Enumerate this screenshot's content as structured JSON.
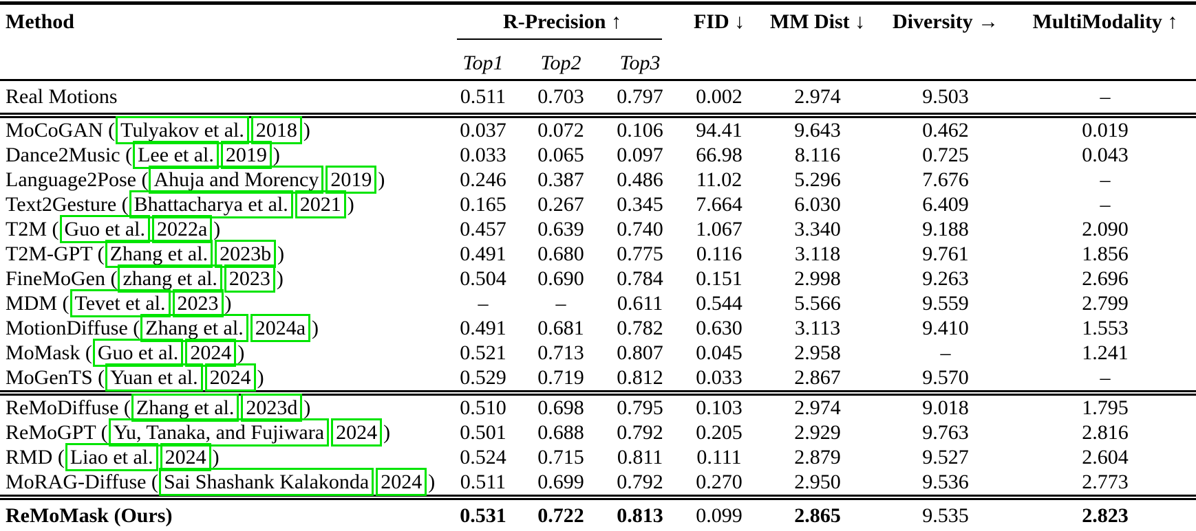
{
  "annotation": {
    "box_color": "#00e400"
  },
  "table": {
    "header": {
      "method": "Method",
      "r_precision": "R-Precision ↑",
      "subcols": [
        "Top1",
        "Top2",
        "Top3"
      ],
      "metrics": [
        "FID ↓",
        "MM Dist ↓",
        "Diversity →",
        "MultiModality ↑"
      ]
    },
    "missing_symbol": "–",
    "sections": [
      {
        "rows": [
          {
            "name": "Real Motions",
            "cite": null,
            "values": [
              "0.511",
              "0.703",
              "0.797",
              "0.002",
              "2.974",
              "9.503",
              "–"
            ]
          }
        ]
      },
      {
        "rows": [
          {
            "name": "MoCoGAN",
            "cite": {
              "author": "Tulyakov et al.",
              "year": "2018"
            },
            "values": [
              "0.037",
              "0.072",
              "0.106",
              "94.41",
              "9.643",
              "0.462",
              "0.019"
            ]
          },
          {
            "name": "Dance2Music",
            "cite": {
              "author": "Lee et al.",
              "year": "2019"
            },
            "values": [
              "0.033",
              "0.065",
              "0.097",
              "66.98",
              "8.116",
              "0.725",
              "0.043"
            ]
          },
          {
            "name": "Language2Pose",
            "cite": {
              "author": "Ahuja and Morency",
              "year": "2019"
            },
            "values": [
              "0.246",
              "0.387",
              "0.486",
              "11.02",
              "5.296",
              "7.676",
              "–"
            ]
          },
          {
            "name": "Text2Gesture",
            "cite": {
              "author": "Bhattacharya et al.",
              "year": "2021"
            },
            "values": [
              "0.165",
              "0.267",
              "0.345",
              "7.664",
              "6.030",
              "6.409",
              "–"
            ]
          },
          {
            "name": "T2M",
            "cite": {
              "author": "Guo et al.",
              "year": "2022a"
            },
            "values": [
              "0.457",
              "0.639",
              "0.740",
              "1.067",
              "3.340",
              "9.188",
              "2.090"
            ]
          },
          {
            "name": "T2M-GPT",
            "cite": {
              "author": "Zhang et al.",
              "year": "2023b"
            },
            "values": [
              "0.491",
              "0.680",
              "0.775",
              "0.116",
              "3.118",
              "9.761",
              "1.856"
            ]
          },
          {
            "name": "FineMoGen",
            "cite": {
              "author": "zhang et al.",
              "year": "2023"
            },
            "values": [
              "0.504",
              "0.690",
              "0.784",
              "0.151",
              "2.998",
              "9.263",
              "2.696"
            ]
          },
          {
            "name": "MDM",
            "cite": {
              "author": "Tevet et al.",
              "year": "2023"
            },
            "values": [
              "–",
              "–",
              "0.611",
              "0.544",
              "5.566",
              "9.559",
              "2.799"
            ]
          },
          {
            "name": "MotionDiffuse",
            "cite": {
              "author": "Zhang et al.",
              "year": "2024a"
            },
            "values": [
              "0.491",
              "0.681",
              "0.782",
              "0.630",
              "3.113",
              "9.410",
              "1.553"
            ]
          },
          {
            "name": "MoMask",
            "cite": {
              "author": "Guo et al.",
              "year": "2024"
            },
            "values": [
              "0.521",
              "0.713",
              "0.807",
              "0.045",
              "2.958",
              "–",
              "1.241"
            ]
          },
          {
            "name": "MoGenTS",
            "cite": {
              "author": "Yuan et al.",
              "year": "2024"
            },
            "values": [
              "0.529",
              "0.719",
              "0.812",
              "0.033",
              "2.867",
              "9.570",
              "–"
            ]
          }
        ]
      },
      {
        "rows": [
          {
            "name": "ReMoDiffuse",
            "cite": {
              "author": "Zhang et al.",
              "year": "2023d"
            },
            "values": [
              "0.510",
              "0.698",
              "0.795",
              "0.103",
              "2.974",
              "9.018",
              "1.795"
            ]
          },
          {
            "name": "ReMoGPT",
            "cite": {
              "author": "Yu, Tanaka, and Fujiwara",
              "year": "2024"
            },
            "values": [
              "0.501",
              "0.688",
              "0.792",
              "0.205",
              "2.929",
              "9.763",
              "2.816"
            ]
          },
          {
            "name": "RMD",
            "cite": {
              "author": "Liao et al.",
              "year": "2024"
            },
            "values": [
              "0.524",
              "0.715",
              "0.811",
              "0.111",
              "2.879",
              "9.527",
              "2.604"
            ]
          },
          {
            "name": "MoRAG-Diffuse",
            "cite": {
              "author": "Sai Shashank Kalakonda",
              "year": "2024"
            },
            "values": [
              "0.511",
              "0.699",
              "0.792",
              "0.270",
              "2.950",
              "9.536",
              "2.773"
            ]
          }
        ]
      },
      {
        "rows": [
          {
            "name": "ReMoMask (Ours)",
            "cite": null,
            "bold": true,
            "values": [
              "0.531",
              "0.722",
              "0.813",
              "0.099",
              "2.865",
              "9.535",
              "2.823"
            ],
            "values_bold": [
              true,
              true,
              true,
              false,
              true,
              false,
              true
            ]
          }
        ]
      }
    ]
  }
}
